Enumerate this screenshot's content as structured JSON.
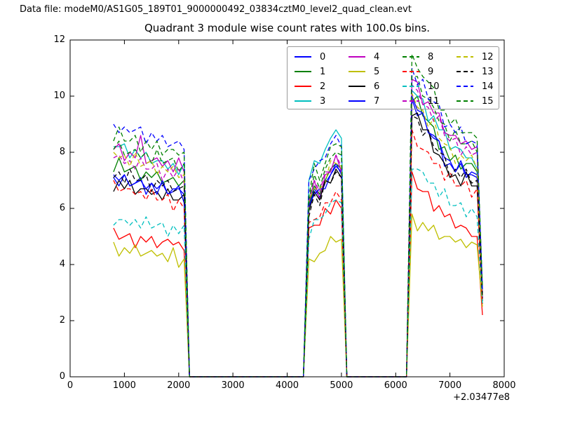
{
  "header": {
    "datafile": "Data file: modeM0/AS1G05_189T01_9000000492_03834cztM0_level2_quad_clean.evt"
  },
  "chart_data": {
    "type": "line",
    "title": "Quadrant 3 module wise count rates with 100.0s bins.",
    "xlabel": "",
    "ylabel": "",
    "xlim": [
      0,
      8000
    ],
    "ylim": [
      0,
      12
    ],
    "x_ticks": [
      0,
      1000,
      2000,
      3000,
      4000,
      5000,
      6000,
      7000,
      8000
    ],
    "y_ticks": [
      0,
      2,
      4,
      6,
      8,
      10,
      12
    ],
    "x_offset_label": "+2.03477e8",
    "grid": false,
    "legend_position": "upper center",
    "x": [
      800,
      900,
      1000,
      1100,
      1200,
      1300,
      1400,
      1500,
      1600,
      1700,
      1800,
      1900,
      2000,
      2100,
      2200,
      4300,
      4400,
      4500,
      4600,
      4700,
      4800,
      4900,
      5000,
      5100,
      6200,
      6300,
      6400,
      6500,
      6600,
      6700,
      6800,
      6900,
      7000,
      7100,
      7200,
      7300,
      7400,
      7500,
      7600
    ],
    "series": [
      {
        "name": "0",
        "color": "#0000ff",
        "linestyle": "solid",
        "values": [
          7.1,
          6.8,
          7.2,
          6.8,
          6.9,
          7.1,
          6.5,
          6.9,
          6.7,
          6.9,
          6.5,
          6.7,
          6.7,
          6.5,
          0,
          0,
          6.0,
          6.7,
          6.4,
          6.9,
          7.2,
          7.5,
          7.3,
          0,
          0,
          9.9,
          9.3,
          9.4,
          8.7,
          8.5,
          8.4,
          7.5,
          7.6,
          7.3,
          7.6,
          7.1,
          7.3,
          7.2,
          2.8
        ]
      },
      {
        "name": "1",
        "color": "#008000",
        "linestyle": "solid",
        "values": [
          7.3,
          7.8,
          7.3,
          7.4,
          7.5,
          7.0,
          7.3,
          7.1,
          7.3,
          6.9,
          7.0,
          7.1,
          6.8,
          7.0,
          0,
          0,
          6.1,
          6.8,
          6.5,
          7.0,
          7.4,
          7.6,
          7.4,
          0,
          0,
          9.8,
          10.0,
          9.3,
          9.1,
          8.9,
          8.1,
          8.2,
          7.7,
          7.9,
          7.4,
          7.6,
          7.6,
          7.3,
          2.9
        ]
      },
      {
        "name": "2",
        "color": "#ff0000",
        "linestyle": "solid",
        "values": [
          5.3,
          4.9,
          5.0,
          5.1,
          4.6,
          5.0,
          4.8,
          5.0,
          4.6,
          4.8,
          4.9,
          4.7,
          4.8,
          4.5,
          0,
          0,
          5.3,
          5.4,
          5.4,
          6.0,
          5.8,
          6.3,
          6.0,
          0,
          0,
          7.3,
          6.7,
          6.6,
          6.6,
          5.9,
          6.1,
          5.7,
          5.8,
          5.3,
          5.4,
          5.3,
          5.0,
          5.0,
          2.2
        ]
      },
      {
        "name": "3",
        "color": "#00bfbf",
        "linestyle": "solid",
        "values": [
          8.2,
          8.2,
          8.3,
          7.8,
          8.1,
          7.8,
          8.0,
          7.6,
          7.7,
          7.7,
          7.4,
          7.6,
          7.2,
          7.6,
          0,
          0,
          7.0,
          7.7,
          7.6,
          8.1,
          8.5,
          8.8,
          8.5,
          0,
          0,
          10.2,
          10.0,
          9.9,
          9.1,
          9.3,
          8.8,
          8.8,
          8.1,
          8.2,
          8.1,
          7.8,
          7.8,
          7.4,
          3.0
        ]
      },
      {
        "name": "4",
        "color": "#bf00bf",
        "linestyle": "solid",
        "values": [
          8.1,
          8.3,
          7.7,
          8.0,
          7.8,
          8.6,
          7.6,
          7.7,
          7.8,
          7.5,
          7.7,
          7.3,
          7.8,
          7.3,
          0,
          0,
          6.2,
          7.0,
          6.3,
          7.2,
          7.3,
          7.9,
          7.3,
          0,
          0,
          10.6,
          10.5,
          9.7,
          9.8,
          9.4,
          9.4,
          8.7,
          8.6,
          8.6,
          8.3,
          8.4,
          8.1,
          8.2,
          3.1
        ]
      },
      {
        "name": "5",
        "color": "#bfbf00",
        "linestyle": "solid",
        "values": [
          4.8,
          4.3,
          4.6,
          4.4,
          4.7,
          4.3,
          4.4,
          4.5,
          4.3,
          4.4,
          4.1,
          4.6,
          3.9,
          4.2,
          0,
          0,
          4.2,
          4.1,
          4.4,
          4.5,
          5.0,
          4.8,
          4.9,
          0,
          0,
          5.8,
          5.2,
          5.5,
          5.2,
          5.4,
          4.9,
          5.0,
          5.0,
          4.8,
          4.9,
          4.6,
          4.8,
          4.7,
          2.5
        ]
      },
      {
        "name": "6",
        "color": "#000000",
        "linestyle": "solid",
        "values": [
          6.6,
          7.0,
          6.7,
          7.0,
          6.5,
          6.7,
          6.7,
          6.5,
          6.6,
          6.3,
          6.7,
          6.3,
          6.3,
          6.5,
          0,
          0,
          5.9,
          6.6,
          6.3,
          7.0,
          6.9,
          7.4,
          7.1,
          0,
          0,
          9.3,
          9.4,
          8.8,
          8.8,
          8.0,
          7.9,
          7.6,
          7.1,
          7.2,
          6.8,
          7.3,
          6.8,
          6.8,
          2.7
        ]
      },
      {
        "name": "7",
        "color": "#0000ff",
        "linestyle": "solid",
        "values": [
          7.2,
          7.0,
          7.2,
          6.8,
          6.9,
          7.0,
          6.7,
          6.9,
          6.5,
          7.0,
          6.5,
          6.6,
          6.8,
          6.2,
          0,
          0,
          6.1,
          6.5,
          6.7,
          6.7,
          7.2,
          7.6,
          7.2,
          0,
          0,
          10.0,
          9.5,
          9.4,
          8.7,
          8.6,
          8.4,
          7.8,
          7.7,
          7.3,
          7.7,
          7.2,
          7.2,
          7.1,
          2.8
        ]
      },
      {
        "name": "8",
        "color": "#008000",
        "linestyle": "dashed",
        "values": [
          8.1,
          8.4,
          7.9,
          8.0,
          8.1,
          7.8,
          8.0,
          7.6,
          8.1,
          7.6,
          7.7,
          7.8,
          7.3,
          7.6,
          0,
          0,
          6.3,
          7.2,
          6.7,
          7.4,
          7.8,
          8.0,
          7.9,
          0,
          0,
          10.7,
          10.7,
          10.0,
          9.9,
          9.6,
          9.1,
          9.0,
          8.4,
          8.8,
          8.3,
          8.3,
          8.4,
          8.0,
          3.0
        ]
      },
      {
        "name": "9",
        "color": "#ff0000",
        "linestyle": "dashed",
        "values": [
          7.0,
          6.6,
          6.7,
          6.7,
          6.5,
          6.6,
          6.3,
          6.7,
          6.3,
          6.3,
          6.5,
          5.9,
          6.3,
          6.0,
          0,
          0,
          5.5,
          5.6,
          5.7,
          6.2,
          6.2,
          6.6,
          6.3,
          0,
          0,
          8.8,
          8.2,
          8.1,
          8.0,
          7.6,
          7.6,
          7.0,
          7.3,
          6.8,
          6.8,
          7.0,
          6.4,
          6.7,
          2.6
        ]
      },
      {
        "name": "10",
        "color": "#00bfbf",
        "linestyle": "dashed",
        "values": [
          5.4,
          5.6,
          5.6,
          5.4,
          5.6,
          5.3,
          5.7,
          5.3,
          5.4,
          5.5,
          5.0,
          5.4,
          5.1,
          5.4,
          0,
          0,
          4.9,
          5.6,
          5.6,
          5.8,
          6.2,
          6.3,
          6.2,
          0,
          0,
          7.4,
          7.4,
          7.3,
          6.9,
          6.9,
          6.4,
          6.7,
          6.1,
          6.1,
          6.2,
          5.7,
          6.0,
          5.7,
          2.6
        ]
      },
      {
        "name": "11",
        "color": "#bf00bf",
        "linestyle": "dashed",
        "values": [
          7.8,
          7.9,
          7.6,
          7.7,
          7.4,
          7.8,
          7.4,
          7.4,
          7.6,
          7.0,
          7.4,
          7.1,
          7.4,
          6.9,
          0,
          0,
          6.2,
          7.0,
          6.6,
          7.3,
          7.3,
          7.9,
          7.5,
          0,
          0,
          10.4,
          10.2,
          9.7,
          9.6,
          9.1,
          9.3,
          8.6,
          8.4,
          8.5,
          7.9,
          8.2,
          7.9,
          8.0,
          3.0
        ]
      },
      {
        "name": "12",
        "color": "#bfbf00",
        "linestyle": "dashed",
        "values": [
          8.0,
          7.8,
          7.9,
          7.5,
          8.0,
          7.5,
          7.6,
          7.7,
          7.2,
          7.5,
          7.3,
          7.5,
          7.1,
          7.2,
          0,
          0,
          6.3,
          6.7,
          6.7,
          6.9,
          7.7,
          7.6,
          7.5,
          0,
          0,
          10.1,
          9.6,
          9.5,
          8.9,
          9.2,
          8.5,
          8.3,
          8.2,
          7.6,
          7.9,
          7.7,
          7.9,
          7.4,
          2.9
        ]
      },
      {
        "name": "13",
        "color": "#000000",
        "linestyle": "dashed",
        "values": [
          7.1,
          7.3,
          6.9,
          7.4,
          7.0,
          7.0,
          7.2,
          6.6,
          7.0,
          6.8,
          7.0,
          6.6,
          6.7,
          6.8,
          0,
          0,
          5.7,
          6.5,
          6.1,
          7.0,
          6.9,
          7.3,
          7.1,
          0,
          0,
          9.3,
          9.2,
          8.6,
          8.8,
          8.2,
          8.0,
          7.9,
          7.1,
          7.4,
          7.1,
          7.4,
          6.9,
          7.0,
          2.8
        ]
      },
      {
        "name": "14",
        "color": "#0000ff",
        "linestyle": "dashed",
        "values": [
          9.0,
          8.7,
          8.9,
          8.7,
          8.8,
          8.9,
          8.3,
          8.7,
          8.4,
          8.6,
          8.2,
          8.3,
          8.4,
          8.1,
          0,
          0,
          7.0,
          7.4,
          7.7,
          7.8,
          8.3,
          8.6,
          8.2,
          0,
          0,
          11.0,
          10.4,
          10.6,
          9.9,
          9.8,
          9.7,
          8.9,
          9.0,
          8.7,
          8.9,
          8.3,
          8.4,
          8.3,
          3.1
        ]
      },
      {
        "name": "15",
        "color": "#008000",
        "linestyle": "dashed",
        "values": [
          8.4,
          8.9,
          8.4,
          8.4,
          8.6,
          8.0,
          8.4,
          8.1,
          8.4,
          7.9,
          8.1,
          8.1,
          7.9,
          8.0,
          0,
          0,
          6.4,
          7.6,
          7.0,
          7.6,
          8.2,
          8.3,
          8.2,
          0,
          0,
          11.5,
          11.0,
          10.7,
          10.5,
          10.3,
          9.5,
          9.5,
          9.0,
          9.2,
          8.7,
          8.7,
          8.7,
          8.5,
          3.2
        ]
      }
    ]
  }
}
